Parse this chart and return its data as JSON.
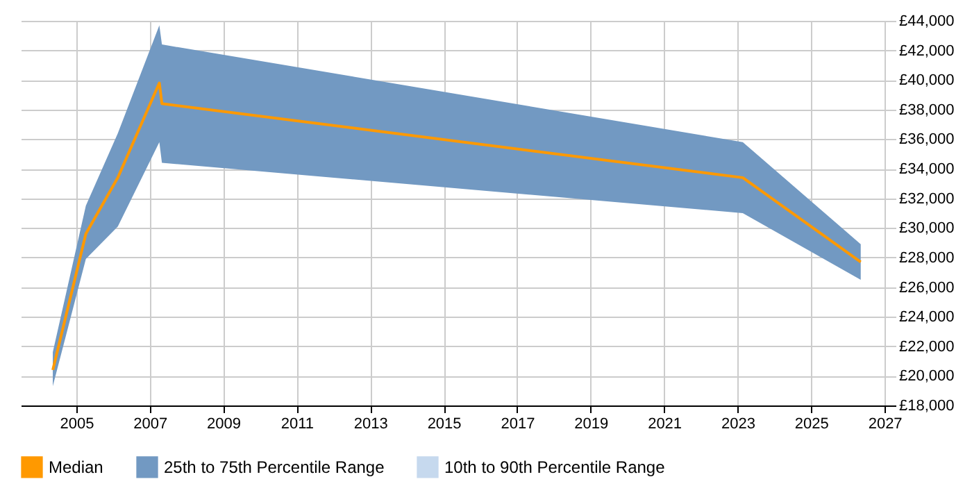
{
  "chart_data": {
    "type": "line",
    "x": [
      2004.36,
      2005.26,
      2006.13,
      2007.26,
      2007.33,
      2023.14,
      2026.35
    ],
    "series": [
      {
        "name": "Median",
        "type": "line",
        "color": "#ff9900",
        "values": [
          20400,
          29600,
          33400,
          39800,
          38400,
          33400,
          27700
        ],
        "lower": [
          19300,
          27900,
          30100,
          35800,
          34400,
          31000,
          26500
        ],
        "upper": [
          21600,
          31500,
          36400,
          43700,
          42400,
          35800,
          28900
        ]
      },
      {
        "name": "25th to 75th Percentile Range",
        "type": "area",
        "color": "#7299c2",
        "values": [
          null,
          null,
          null,
          null,
          null,
          null,
          null
        ]
      },
      {
        "name": "10th to 90th Percentile Range",
        "type": "area",
        "color": "#c6d9ee",
        "values": [
          null,
          null,
          null,
          null,
          null,
          null,
          null
        ]
      }
    ],
    "xlim": [
      2003.49,
      2027.3
    ],
    "xticks": [
      2005,
      2007,
      2009,
      2011,
      2013,
      2015,
      2017,
      2019,
      2021,
      2023,
      2025,
      2027
    ],
    "ylim": [
      18000,
      44000
    ],
    "yticks": [
      {
        "value": 18000,
        "label": "£18,000"
      },
      {
        "value": 20000,
        "label": "£20,000"
      },
      {
        "value": 22000,
        "label": "£22,000"
      },
      {
        "value": 24000,
        "label": "£24,000"
      },
      {
        "value": 26000,
        "label": "£26,000"
      },
      {
        "value": 28000,
        "label": "£28,000"
      },
      {
        "value": 30000,
        "label": "£30,000"
      },
      {
        "value": 32000,
        "label": "£32,000"
      },
      {
        "value": 34000,
        "label": "£34,000"
      },
      {
        "value": 36000,
        "label": "£36,000"
      },
      {
        "value": 38000,
        "label": "£38,000"
      },
      {
        "value": 40000,
        "label": "£40,000"
      },
      {
        "value": 42000,
        "label": "£42,000"
      },
      {
        "value": 44000,
        "label": "£44,000"
      }
    ],
    "grid": true,
    "legend": "bottom"
  }
}
